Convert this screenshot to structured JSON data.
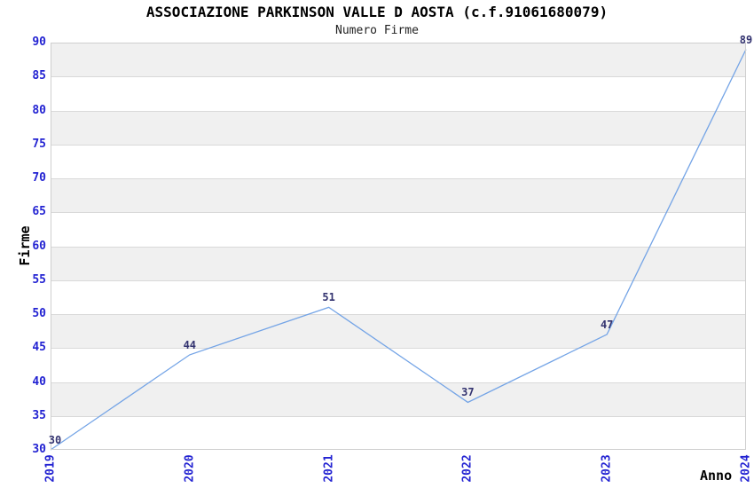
{
  "header": {
    "title": "ASSOCIAZIONE PARKINSON VALLE D AOSTA (c.f.91061680079)",
    "subtitle": "Numero Firme"
  },
  "chart_data": {
    "type": "line",
    "title": "ASSOCIAZIONE PARKINSON VALLE D AOSTA (c.f.91061680079)",
    "subtitle": "Numero Firme",
    "xlabel": "Anno",
    "ylabel": "Firme",
    "categories": [
      "2019",
      "2020",
      "2021",
      "2022",
      "2023",
      "2024"
    ],
    "values": [
      30,
      44,
      51,
      37,
      47,
      89
    ],
    "point_labels": [
      "30",
      "44",
      "51",
      "37",
      "47",
      "89"
    ],
    "ylim": [
      30,
      90
    ],
    "ytick_step": 5,
    "yticks": [
      30,
      35,
      40,
      45,
      50,
      55,
      60,
      65,
      70,
      75,
      80,
      85,
      90
    ],
    "grid": "horizontal gridlines with alternating shaded bands",
    "legend": "none",
    "colors": {
      "line": "#74a4e6",
      "tick_label": "#2323d2",
      "point_label": "#333370",
      "band_gray": "#f0f0f0",
      "band_white": "#ffffff",
      "gridline": "#d9d9d9",
      "plot_border": "#cfcfcf",
      "title": "#000000",
      "axis_title": "#000000"
    }
  }
}
